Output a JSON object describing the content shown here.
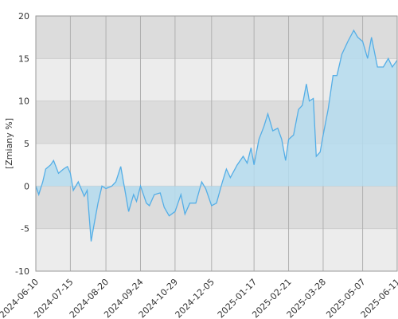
{
  "chart_data": {
    "type": "area",
    "y_label": "[Zmiany %]",
    "x": [
      "2024-06-10",
      "2024-06-13",
      "2024-06-17",
      "2024-06-20",
      "2024-06-25",
      "2024-06-28",
      "2024-07-03",
      "2024-07-08",
      "2024-07-12",
      "2024-07-15",
      "2024-07-18",
      "2024-07-23",
      "2024-07-29",
      "2024-08-01",
      "2024-08-05",
      "2024-08-08",
      "2024-08-12",
      "2024-08-16",
      "2024-08-20",
      "2024-08-26",
      "2024-08-30",
      "2024-09-04",
      "2024-09-09",
      "2024-09-12",
      "2024-09-17",
      "2024-09-20",
      "2024-09-24",
      "2024-09-30",
      "2024-10-03",
      "2024-10-08",
      "2024-10-14",
      "2024-10-18",
      "2024-10-23",
      "2024-10-29",
      "2024-11-04",
      "2024-11-08",
      "2024-11-13",
      "2024-11-19",
      "2024-11-25",
      "2024-11-29",
      "2024-12-05",
      "2024-12-10",
      "2024-12-16",
      "2024-12-20",
      "2024-12-24",
      "2024-12-31",
      "2025-01-06",
      "2025-01-10",
      "2025-01-14",
      "2025-01-17",
      "2025-01-22",
      "2025-01-27",
      "2025-01-31",
      "2025-02-05",
      "2025-02-10",
      "2025-02-14",
      "2025-02-18",
      "2025-02-21",
      "2025-02-26",
      "2025-03-03",
      "2025-03-07",
      "2025-03-11",
      "2025-03-14",
      "2025-03-18",
      "2025-03-21",
      "2025-03-25",
      "2025-03-28",
      "2025-04-02",
      "2025-04-07",
      "2025-04-11",
      "2025-04-16",
      "2025-04-22",
      "2025-04-28",
      "2025-05-02",
      "2025-05-07",
      "2025-05-12",
      "2025-05-16",
      "2025-05-22",
      "2025-05-28",
      "2025-06-02",
      "2025-06-06",
      "2025-06-11"
    ],
    "series": [
      {
        "color": "#55aee6",
        "fill": "#b5dcef",
        "values": [
          0,
          -1,
          0.5,
          2,
          2.5,
          3,
          1.5,
          2,
          2.3,
          1.5,
          -0.5,
          0.5,
          -1.2,
          -0.5,
          -6.5,
          -4.5,
          -2,
          0,
          -0.3,
          0,
          0.5,
          2.3,
          -1,
          -3,
          -1,
          -1.8,
          0,
          -2,
          -2.3,
          -1,
          -0.8,
          -2.5,
          -3.5,
          -3,
          -1,
          -3.3,
          -2,
          -2,
          0.5,
          -0.3,
          -2.3,
          -2,
          0.5,
          2,
          1,
          2.5,
          3.5,
          2.7,
          4.5,
          2.5,
          5.5,
          7,
          8.5,
          6.5,
          6.8,
          5.5,
          3,
          5.5,
          6,
          9,
          9.5,
          12,
          10,
          10.3,
          3.5,
          4,
          6,
          9,
          13,
          13,
          15.5,
          17,
          18.3,
          17.5,
          17,
          15,
          17.5,
          14,
          14,
          15,
          14,
          14.8
        ]
      }
    ],
    "xlim": [
      "2024-06-10",
      "2025-06-11"
    ],
    "xticks": [
      "2024-06-10",
      "2024-07-15",
      "2024-08-20",
      "2024-09-24",
      "2024-10-29",
      "2024-12-05",
      "2025-01-17",
      "2025-02-21",
      "2025-03-28",
      "2025-05-07",
      "2025-06-11"
    ],
    "ylim": [
      -10,
      20
    ],
    "yticks": [
      -10,
      -5,
      0,
      5,
      10,
      15,
      20
    ],
    "grid": true
  }
}
